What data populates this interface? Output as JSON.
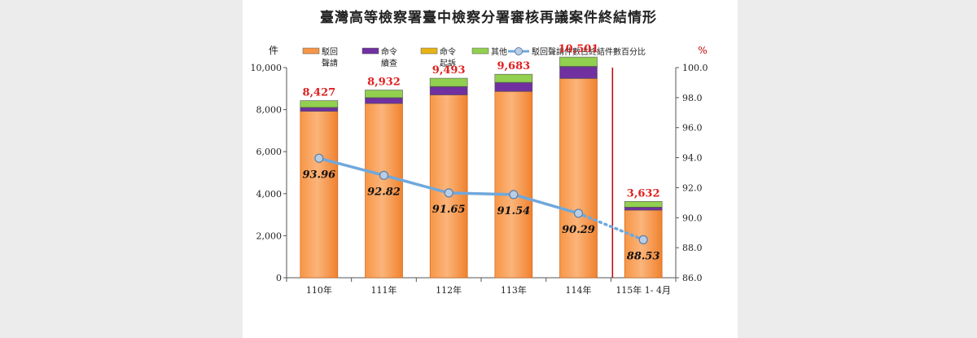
{
  "chart_data": {
    "type": "bar",
    "title": "臺灣高等檢察署臺中檢察分署審核再議案件終結情形",
    "y_left_unit": "件",
    "y_right_unit": "%",
    "ylim_left": [
      0,
      10000
    ],
    "ylim_right": [
      86.0,
      100.0
    ],
    "y_left_ticks": [
      "0",
      "2,000",
      "4,000",
      "6,000",
      "8,000",
      "10,000"
    ],
    "y_right_ticks": [
      "86.0",
      "88.0",
      "90.0",
      "92.0",
      "94.0",
      "96.0",
      "98.0",
      "100.0"
    ],
    "categories": [
      "110年",
      "111年",
      "112年",
      "113年",
      "114年",
      "115年 1- 4月"
    ],
    "stacked": true,
    "series": [
      {
        "name_lines": [
          "駁回",
          "聲請"
        ],
        "color": "#F79646",
        "values": [
          7918,
          8290,
          8700,
          8864,
          9481,
          3215
        ]
      },
      {
        "name_lines": [
          "命令",
          "續查"
        ],
        "color": "#7030A0",
        "values": [
          180,
          270,
          390,
          420,
          560,
          140
        ]
      },
      {
        "name_lines": [
          "命令",
          "起訴"
        ],
        "color": "#E7B416",
        "values": [
          8,
          10,
          12,
          14,
          18,
          5
        ]
      },
      {
        "name_lines": [
          "其他"
        ],
        "color": "#92D050",
        "values": [
          321,
          362,
          391,
          385,
          442,
          272
        ]
      }
    ],
    "totals": [
      "8,427",
      "8,932",
      "9,493",
      "9,683",
      "10,501",
      "3,632"
    ],
    "totals_color": "#E02020",
    "line": {
      "name": "駁回聲請件數占終結件數百分比",
      "color": "#6FA8DC",
      "values": [
        93.96,
        92.82,
        91.65,
        91.54,
        90.29,
        88.53
      ],
      "labels": [
        "93.96",
        "92.82",
        "91.65",
        "91.54",
        "90.29",
        "88.53"
      ],
      "dashed_last_segment": true
    },
    "divider": {
      "position": "between 114年 and 115年 1- 4月",
      "color": "#C00000"
    },
    "grid": false,
    "legend_position": "top"
  }
}
